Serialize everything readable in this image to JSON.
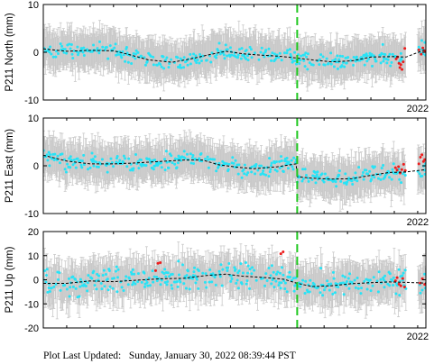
{
  "footer": {
    "label": "Plot Last Updated:",
    "timestamp": "Sunday, January 30, 2022 08:39:44 PST"
  },
  "colors": {
    "points": "#27e3f6",
    "recent_points": "#ee1c1c",
    "error_bars": "#c9c9c9",
    "trend": "#000000",
    "event_line": "#1fc71f"
  },
  "chart_data": [
    {
      "type": "scatter",
      "ylabel": "P211 North (mm)",
      "ylim": [
        -10,
        10
      ],
      "yticks": [
        -10,
        0,
        10
      ],
      "xlabel": "",
      "xlim": [
        2006.0,
        2022.35
      ],
      "xtick_label": "2022",
      "xtick_value": 2022.0,
      "event_line": 2016.85,
      "error_bar": 3.8,
      "red_window": [
        2021.0,
        2022.35
      ],
      "trend": [
        [
          2006.0,
          0.7
        ],
        [
          2007.0,
          0.2
        ],
        [
          2008.0,
          0.4
        ],
        [
          2009.0,
          0.3
        ],
        [
          2009.6,
          -0.4
        ],
        [
          2010.5,
          -1.6
        ],
        [
          2011.5,
          -2.1
        ],
        [
          2012.3,
          -1.4
        ],
        [
          2013.0,
          -0.6
        ],
        [
          2013.8,
          0.2
        ],
        [
          2014.5,
          -0.3
        ],
        [
          2015.3,
          -0.6
        ],
        [
          2016.0,
          -0.8
        ],
        [
          2016.85,
          -1.2
        ],
        [
          2017.5,
          -1.6
        ],
        [
          2018.3,
          -2.0
        ],
        [
          2019.2,
          -1.8
        ],
        [
          2020.0,
          -1.0
        ],
        [
          2021.0,
          -0.9
        ],
        [
          2021.5,
          -1.0
        ],
        [
          2022.35,
          0.6
        ]
      ],
      "spread": 1.3,
      "red_points": [
        [
          2021.08,
          -1.4
        ],
        [
          2021.14,
          -1.0
        ],
        [
          2021.2,
          -2.3
        ],
        [
          2021.24,
          -3.2
        ],
        [
          2021.28,
          -2.6
        ],
        [
          2021.33,
          -3.6
        ],
        [
          2021.38,
          -2.0
        ],
        [
          2021.45,
          0.8
        ],
        [
          2022.05,
          0.5
        ],
        [
          2022.15,
          -0.4
        ],
        [
          2022.22,
          0.9
        ],
        [
          2022.3,
          0.3
        ]
      ]
    },
    {
      "type": "scatter",
      "ylabel": "P211 East (mm)",
      "ylim": [
        -10,
        10
      ],
      "yticks": [
        -10,
        0,
        10
      ],
      "xlabel": "",
      "xlim": [
        2006.0,
        2022.35
      ],
      "xtick_label": "2022",
      "xtick_value": 2022.0,
      "event_line": 2016.85,
      "error_bar": 3.8,
      "red_window": [
        2021.0,
        2022.35
      ],
      "trend": [
        [
          2006.0,
          2.2
        ],
        [
          2007.0,
          1.0
        ],
        [
          2008.0,
          0.4
        ],
        [
          2009.0,
          0.4
        ],
        [
          2010.0,
          0.6
        ],
        [
          2011.0,
          0.9
        ],
        [
          2012.0,
          1.2
        ],
        [
          2012.8,
          1.2
        ],
        [
          2013.5,
          0.2
        ],
        [
          2014.3,
          -0.3
        ],
        [
          2015.0,
          -0.6
        ],
        [
          2016.0,
          -0.2
        ],
        [
          2016.8,
          0.4
        ],
        [
          2016.86,
          -2.3
        ],
        [
          2017.5,
          -2.6
        ],
        [
          2018.3,
          -2.8
        ],
        [
          2019.2,
          -2.7
        ],
        [
          2020.0,
          -2.0
        ],
        [
          2020.8,
          -1.4
        ],
        [
          2021.5,
          -1.3
        ],
        [
          2022.35,
          -0.8
        ]
      ],
      "spread": 1.4,
      "red_points": [
        [
          2021.05,
          -0.4
        ],
        [
          2021.12,
          -0.9
        ],
        [
          2021.18,
          -0.2
        ],
        [
          2021.25,
          -1.5
        ],
        [
          2021.32,
          -0.8
        ],
        [
          2021.4,
          0.3
        ],
        [
          2021.47,
          -1.0
        ],
        [
          2022.05,
          0.4
        ],
        [
          2022.12,
          1.8
        ],
        [
          2022.18,
          2.3
        ],
        [
          2022.25,
          0.9
        ],
        [
          2022.3,
          1.3
        ]
      ]
    },
    {
      "type": "scatter",
      "ylabel": "P211 Up (mm)",
      "ylim": [
        -20,
        20
      ],
      "yticks": [
        -20,
        -10,
        0,
        10,
        20
      ],
      "xlabel": "",
      "xlim": [
        2006.0,
        2022.35
      ],
      "xtick_label": "2022",
      "xtick_value": 2022.0,
      "event_line": 2016.85,
      "error_bar": 7.5,
      "red_window": [
        2021.0,
        2022.35
      ],
      "trend": [
        [
          2006.0,
          -1.5
        ],
        [
          2007.0,
          -1.5
        ],
        [
          2008.0,
          -0.5
        ],
        [
          2009.0,
          -0.8
        ],
        [
          2010.0,
          -0.2
        ],
        [
          2011.0,
          0.4
        ],
        [
          2012.0,
          0.6
        ],
        [
          2013.0,
          1.8
        ],
        [
          2013.8,
          2.3
        ],
        [
          2014.5,
          1.5
        ],
        [
          2015.5,
          0.9
        ],
        [
          2016.3,
          0.2
        ],
        [
          2016.85,
          -1.5
        ],
        [
          2017.5,
          -2.8
        ],
        [
          2018.3,
          -2.5
        ],
        [
          2019.2,
          -1.6
        ],
        [
          2020.0,
          -1.2
        ],
        [
          2020.8,
          -0.9
        ],
        [
          2021.5,
          -1.1
        ],
        [
          2022.35,
          -1.4
        ]
      ],
      "spread": 4.0,
      "red_points": [
        [
          2010.9,
          6.8
        ],
        [
          2011.0,
          7.1
        ],
        [
          2010.8,
          3.8
        ],
        [
          2016.15,
          10.8
        ],
        [
          2016.25,
          11.6
        ],
        [
          2021.05,
          -0.4
        ],
        [
          2021.12,
          0.9
        ],
        [
          2021.2,
          -1.8
        ],
        [
          2021.28,
          -2.5
        ],
        [
          2021.36,
          0.5
        ],
        [
          2021.44,
          -3.0
        ],
        [
          2022.1,
          -1.4
        ],
        [
          2022.2,
          0.4
        ],
        [
          2022.3,
          -1.9
        ]
      ]
    }
  ]
}
